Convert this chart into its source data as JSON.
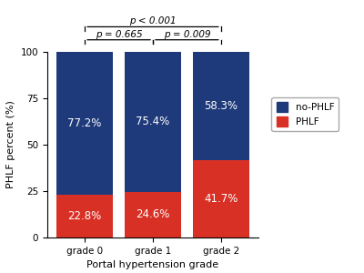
{
  "categories": [
    "grade 0",
    "grade 1",
    "grade 2"
  ],
  "phlf_values": [
    22.8,
    24.6,
    41.7
  ],
  "no_phlf_values": [
    77.2,
    75.4,
    58.3
  ],
  "phlf_color": "#d93025",
  "no_phlf_color": "#1e3a7a",
  "xlabel": "Portal hypertension grade",
  "ylabel": "PHLF percent (%)",
  "ylim": [
    0,
    100
  ],
  "yticks": [
    0,
    25,
    50,
    75,
    100
  ],
  "legend_labels": [
    "no-PHLF",
    "PHLF"
  ],
  "phlf_texts": [
    "22.8%",
    "24.6%",
    "41.7%"
  ],
  "no_phlf_texts": [
    "77.2%",
    "75.4%",
    "58.3%"
  ],
  "bar_width": 0.82,
  "axis_fontsize": 8,
  "tick_fontsize": 7.5,
  "label_fontsize": 8.5,
  "sig_fontsize": 7.5
}
